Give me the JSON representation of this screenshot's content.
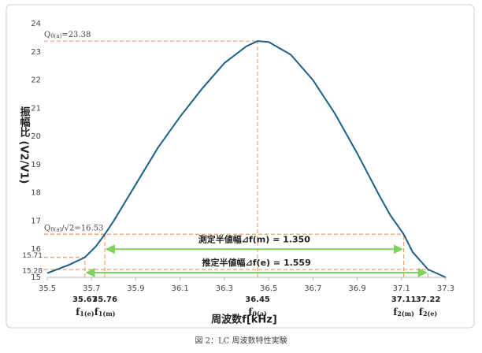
{
  "chart_data": {
    "type": "line",
    "y_title": "振幅比 (V2/V1)",
    "x_title": "周波数f[kHz]",
    "caption": "図 2：LC 周波数特性実験",
    "x": [
      35.5,
      35.6,
      35.67,
      35.72,
      35.76,
      35.8,
      35.9,
      36.0,
      36.1,
      36.2,
      36.3,
      36.4,
      36.45,
      36.5,
      36.6,
      36.7,
      36.8,
      36.9,
      37.0,
      37.05,
      37.11,
      37.15,
      37.22,
      37.3
    ],
    "series": [
      {
        "color": "#1d5f86",
        "values": [
          15.15,
          15.45,
          15.71,
          16.1,
          16.53,
          17.0,
          18.3,
          19.6,
          20.7,
          21.7,
          22.6,
          23.2,
          23.38,
          23.35,
          22.9,
          22.0,
          20.8,
          19.4,
          17.9,
          17.2,
          16.53,
          15.9,
          15.28,
          15.0
        ]
      }
    ],
    "xlim": [
      35.5,
      37.3
    ],
    "xticks": [
      35.5,
      35.7,
      35.9,
      36.1,
      36.3,
      36.5,
      36.7,
      36.9,
      37.1,
      37.3
    ],
    "ylim": [
      15,
      24
    ],
    "yticks": [
      15,
      16,
      17,
      18,
      19,
      20,
      21,
      22,
      23,
      24
    ],
    "guide_color": "#f0a070",
    "arrow_color": "#7fd35c",
    "guides": [
      {
        "x": 35.67,
        "y": 15.71,
        "sym": "f",
        "sub": "1(e)"
      },
      {
        "x": 35.76,
        "y": 16.53,
        "sym": "f",
        "sub": "1(m)"
      },
      {
        "x": 36.45,
        "y": 23.38,
        "sym": "f",
        "sub": "0(a)"
      },
      {
        "x": 37.11,
        "y": 16.53,
        "sym": "f",
        "sub": "2(m)"
      },
      {
        "x": 37.22,
        "y": 15.28,
        "sym": "f",
        "sub": "2(e)"
      }
    ],
    "extra_yticks": [
      15.71,
      15.28
    ],
    "hlabels": [
      {
        "y": 23.38,
        "sym": "Q",
        "sub": "0(a)",
        "text": "=23.38"
      },
      {
        "y": 16.53,
        "sym": "Q",
        "sub": "0(a)",
        "text": "/√2=16.53"
      }
    ],
    "arrows": [
      {
        "label": "測定半値幅⊿f(m) = 1.350",
        "from": 35.76,
        "to": 37.11
      },
      {
        "label": "推定半値幅⊿f(e) = 1.559",
        "from": 35.67,
        "to": 37.22
      }
    ]
  }
}
